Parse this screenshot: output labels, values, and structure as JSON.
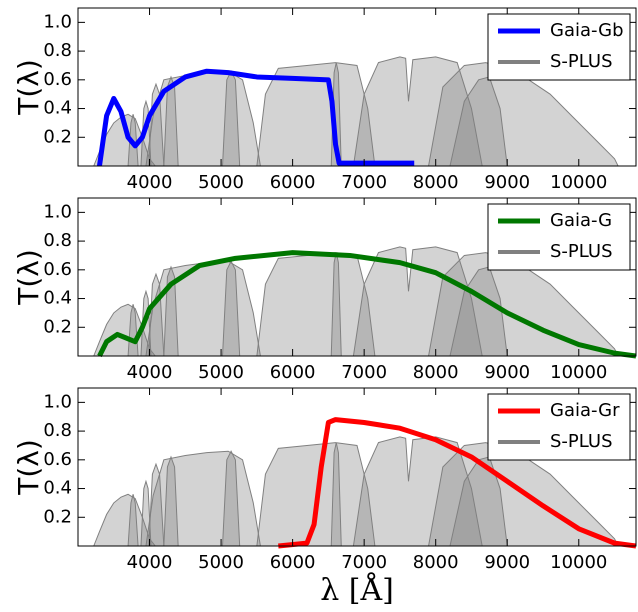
{
  "chart_data": [
    {
      "type": "line",
      "ylabel": "T(λ)",
      "xlim": [
        3000,
        10800
      ],
      "xticks": [
        4000,
        5000,
        6000,
        7000,
        8000,
        9000,
        10000
      ],
      "ylim": [
        0,
        1.1
      ],
      "yticks": [
        0.2,
        0.4,
        0.6,
        0.8,
        {
          "value": 1,
          "label": "1.0"
        }
      ],
      "legend": "upper right",
      "series": [
        {
          "name": "Gaia-Gb",
          "color": "#0000ff",
          "x": [
            3300,
            3400,
            3500,
            3600,
            3700,
            3800,
            3900,
            4000,
            4200,
            4500,
            4800,
            5100,
            5500,
            6000,
            6500,
            6550,
            6600,
            6650,
            7700
          ],
          "values": [
            0,
            0.35,
            0.47,
            0.38,
            0.2,
            0.14,
            0.2,
            0.35,
            0.52,
            0.62,
            0.66,
            0.65,
            0.62,
            0.61,
            0.6,
            0.45,
            0.15,
            0.02,
            0.02
          ]
        },
        {
          "name": "S-PLUS",
          "color": "#808080",
          "curves": [
            {
              "x": [
                3220,
                3300,
                3400,
                3500,
                3600,
                3700,
                3800,
                3900,
                4000,
                4080
              ],
              "values": [
                0,
                0.1,
                0.22,
                0.3,
                0.34,
                0.36,
                0.33,
                0.2,
                0.05,
                0
              ]
            },
            {
              "x": [
                3700,
                3740,
                3770,
                3800,
                3840
              ],
              "values": [
                0,
                0.3,
                0.36,
                0.3,
                0
              ]
            },
            {
              "x": [
                3880,
                3920,
                3950,
                3980,
                4020
              ],
              "values": [
                0,
                0.4,
                0.45,
                0.4,
                0
              ]
            },
            {
              "x": [
                3990,
                4040,
                4090,
                4140,
                4200
              ],
              "values": [
                0,
                0.5,
                0.57,
                0.5,
                0
              ]
            },
            {
              "x": [
                4200,
                4250,
                4300,
                4350,
                4400
              ],
              "values": [
                0,
                0.55,
                0.62,
                0.55,
                0
              ]
            },
            {
              "x": [
                3950,
                4050,
                4200,
                4500,
                4800,
                5100,
                5300,
                5450,
                5550
              ],
              "values": [
                0,
                0.35,
                0.6,
                0.63,
                0.65,
                0.66,
                0.6,
                0.3,
                0
              ]
            },
            {
              "x": [
                5020,
                5080,
                5140,
                5200,
                5260
              ],
              "values": [
                0,
                0.6,
                0.66,
                0.6,
                0
              ]
            },
            {
              "x": [
                5500,
                5620,
                5800,
                6200,
                6600,
                6900,
                7050,
                7150
              ],
              "values": [
                0,
                0.5,
                0.68,
                0.7,
                0.72,
                0.7,
                0.4,
                0
              ]
            },
            {
              "x": [
                6540,
                6580,
                6610,
                6640,
                6680
              ],
              "values": [
                0,
                0.65,
                0.72,
                0.65,
                0
              ]
            },
            {
              "x": [
                6850,
                7000,
                7200,
                7500,
                7580,
                7620,
                7680,
                8000,
                8300,
                8500,
                8650
              ],
              "values": [
                0,
                0.5,
                0.72,
                0.76,
                0.75,
                0.45,
                0.74,
                0.76,
                0.72,
                0.4,
                0
              ]
            },
            {
              "x": [
                8200,
                8400,
                8600,
                8750,
                8900,
                9000
              ],
              "values": [
                0,
                0.45,
                0.6,
                0.62,
                0.4,
                0
              ]
            },
            {
              "x": [
                7900,
                8100,
                8400,
                8700,
                9000,
                9300,
                9600,
                9900,
                10200,
                10500,
                10550
              ],
              "values": [
                0,
                0.55,
                0.7,
                0.72,
                0.68,
                0.6,
                0.5,
                0.35,
                0.2,
                0.05,
                0
              ]
            }
          ]
        }
      ]
    },
    {
      "type": "line",
      "ylabel": "T(λ)",
      "xlim": [
        3000,
        10800
      ],
      "xticks": [
        4000,
        5000,
        6000,
        7000,
        8000,
        9000,
        10000
      ],
      "ylim": [
        0,
        1.1
      ],
      "yticks": [
        0.2,
        0.4,
        0.6,
        0.8,
        {
          "value": 1,
          "label": "1.0"
        }
      ],
      "legend": "upper right",
      "series": [
        {
          "name": "Gaia-G",
          "color": "#007700",
          "x": [
            3300,
            3400,
            3550,
            3700,
            3800,
            3900,
            4000,
            4300,
            4700,
            5200,
            6000,
            6800,
            7500,
            8000,
            8500,
            9000,
            9500,
            10000,
            10500,
            10800
          ],
          "values": [
            0,
            0.1,
            0.15,
            0.12,
            0.1,
            0.2,
            0.33,
            0.5,
            0.63,
            0.68,
            0.72,
            0.7,
            0.65,
            0.58,
            0.45,
            0.3,
            0.18,
            0.08,
            0.02,
            0
          ]
        },
        {
          "name": "S-PLUS",
          "color": "#808080",
          "curves": [
            {
              "x": [
                3220,
                3300,
                3400,
                3500,
                3600,
                3700,
                3800,
                3900,
                4000,
                4080
              ],
              "values": [
                0,
                0.1,
                0.22,
                0.3,
                0.34,
                0.36,
                0.33,
                0.2,
                0.05,
                0
              ]
            },
            {
              "x": [
                3700,
                3740,
                3770,
                3800,
                3840
              ],
              "values": [
                0,
                0.3,
                0.36,
                0.3,
                0
              ]
            },
            {
              "x": [
                3880,
                3920,
                3950,
                3980,
                4020
              ],
              "values": [
                0,
                0.4,
                0.45,
                0.4,
                0
              ]
            },
            {
              "x": [
                3990,
                4040,
                4090,
                4140,
                4200
              ],
              "values": [
                0,
                0.5,
                0.57,
                0.5,
                0
              ]
            },
            {
              "x": [
                4200,
                4250,
                4300,
                4350,
                4400
              ],
              "values": [
                0,
                0.55,
                0.62,
                0.55,
                0
              ]
            },
            {
              "x": [
                3950,
                4050,
                4200,
                4500,
                4800,
                5100,
                5300,
                5450,
                5550
              ],
              "values": [
                0,
                0.35,
                0.6,
                0.63,
                0.65,
                0.66,
                0.6,
                0.3,
                0
              ]
            },
            {
              "x": [
                5020,
                5080,
                5140,
                5200,
                5260
              ],
              "values": [
                0,
                0.6,
                0.66,
                0.6,
                0
              ]
            },
            {
              "x": [
                5500,
                5620,
                5800,
                6200,
                6600,
                6900,
                7050,
                7150
              ],
              "values": [
                0,
                0.5,
                0.68,
                0.7,
                0.72,
                0.7,
                0.4,
                0
              ]
            },
            {
              "x": [
                6540,
                6580,
                6610,
                6640,
                6680
              ],
              "values": [
                0,
                0.65,
                0.72,
                0.65,
                0
              ]
            },
            {
              "x": [
                6850,
                7000,
                7200,
                7500,
                7580,
                7620,
                7680,
                8000,
                8300,
                8500,
                8650
              ],
              "values": [
                0,
                0.5,
                0.72,
                0.76,
                0.75,
                0.45,
                0.74,
                0.76,
                0.72,
                0.4,
                0
              ]
            },
            {
              "x": [
                8200,
                8400,
                8600,
                8750,
                8900,
                9000
              ],
              "values": [
                0,
                0.45,
                0.6,
                0.62,
                0.4,
                0
              ]
            },
            {
              "x": [
                7900,
                8100,
                8400,
                8700,
                9000,
                9300,
                9600,
                9900,
                10200,
                10500,
                10550
              ],
              "values": [
                0,
                0.55,
                0.7,
                0.72,
                0.68,
                0.6,
                0.5,
                0.35,
                0.2,
                0.05,
                0
              ]
            }
          ]
        }
      ]
    },
    {
      "type": "line",
      "ylabel": "T(λ)",
      "xlabel": "λ [Å]",
      "xlim": [
        3000,
        10800
      ],
      "xticks": [
        4000,
        5000,
        6000,
        7000,
        8000,
        9000,
        10000
      ],
      "ylim": [
        0,
        1.1
      ],
      "yticks": [
        0.2,
        0.4,
        0.6,
        0.8,
        {
          "value": 1,
          "label": "1.0"
        }
      ],
      "legend": "upper right",
      "series": [
        {
          "name": "Gaia-Gr",
          "color": "#ff0000",
          "x": [
            5800,
            6200,
            6300,
            6400,
            6500,
            6600,
            7000,
            7500,
            8000,
            8500,
            9000,
            9500,
            10000,
            10500,
            10800
          ],
          "values": [
            0,
            0.02,
            0.15,
            0.55,
            0.86,
            0.88,
            0.86,
            0.82,
            0.74,
            0.62,
            0.45,
            0.28,
            0.12,
            0.02,
            0
          ]
        },
        {
          "name": "S-PLUS",
          "color": "#808080",
          "curves": [
            {
              "x": [
                3220,
                3300,
                3400,
                3500,
                3600,
                3700,
                3800,
                3900,
                4000,
                4080
              ],
              "values": [
                0,
                0.1,
                0.22,
                0.3,
                0.34,
                0.36,
                0.33,
                0.2,
                0.05,
                0
              ]
            },
            {
              "x": [
                3700,
                3740,
                3770,
                3800,
                3840
              ],
              "values": [
                0,
                0.3,
                0.36,
                0.3,
                0
              ]
            },
            {
              "x": [
                3880,
                3920,
                3950,
                3980,
                4020
              ],
              "values": [
                0,
                0.4,
                0.45,
                0.4,
                0
              ]
            },
            {
              "x": [
                3990,
                4040,
                4090,
                4140,
                4200
              ],
              "values": [
                0,
                0.5,
                0.57,
                0.5,
                0
              ]
            },
            {
              "x": [
                4200,
                4250,
                4300,
                4350,
                4400
              ],
              "values": [
                0,
                0.55,
                0.62,
                0.55,
                0
              ]
            },
            {
              "x": [
                3950,
                4050,
                4200,
                4500,
                4800,
                5100,
                5300,
                5450,
                5550
              ],
              "values": [
                0,
                0.35,
                0.6,
                0.63,
                0.65,
                0.66,
                0.6,
                0.3,
                0
              ]
            },
            {
              "x": [
                5020,
                5080,
                5140,
                5200,
                5260
              ],
              "values": [
                0,
                0.6,
                0.66,
                0.6,
                0
              ]
            },
            {
              "x": [
                5500,
                5620,
                5800,
                6200,
                6600,
                6900,
                7050,
                7150
              ],
              "values": [
                0,
                0.5,
                0.68,
                0.7,
                0.72,
                0.7,
                0.4,
                0
              ]
            },
            {
              "x": [
                6540,
                6580,
                6610,
                6640,
                6680
              ],
              "values": [
                0,
                0.65,
                0.72,
                0.65,
                0
              ]
            },
            {
              "x": [
                6850,
                7000,
                7200,
                7500,
                7580,
                7620,
                7680,
                8000,
                8300,
                8500,
                8650
              ],
              "values": [
                0,
                0.5,
                0.72,
                0.76,
                0.75,
                0.45,
                0.74,
                0.76,
                0.72,
                0.4,
                0
              ]
            },
            {
              "x": [
                8200,
                8400,
                8600,
                8750,
                8900,
                9000
              ],
              "values": [
                0,
                0.45,
                0.6,
                0.62,
                0.4,
                0
              ]
            },
            {
              "x": [
                7900,
                8100,
                8400,
                8700,
                9000,
                9300,
                9600,
                9900,
                10200,
                10500,
                10550
              ],
              "values": [
                0,
                0.55,
                0.7,
                0.72,
                0.68,
                0.6,
                0.5,
                0.35,
                0.2,
                0.05,
                0
              ]
            }
          ]
        }
      ]
    }
  ]
}
